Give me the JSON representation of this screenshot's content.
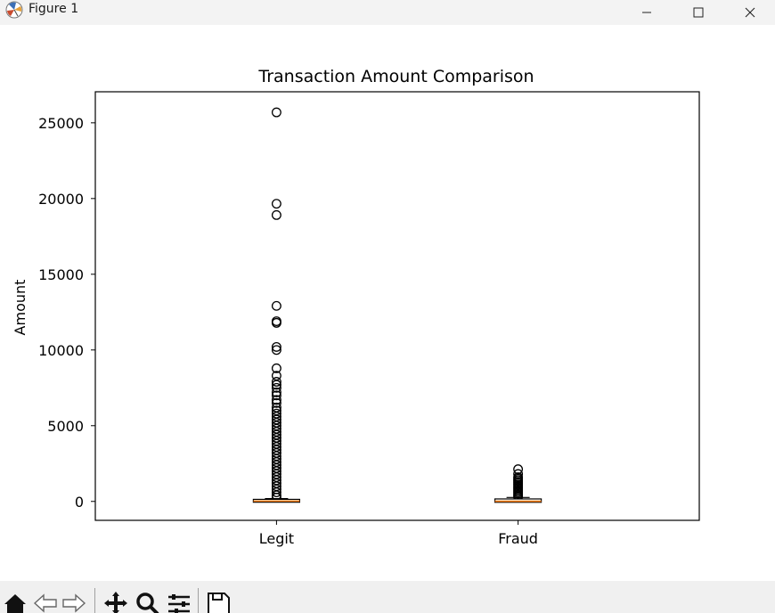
{
  "window": {
    "title": "Figure 1",
    "icon": "matplotlib-icon",
    "controls": [
      "minimize-icon",
      "maximize-icon",
      "close-icon"
    ]
  },
  "toolbar": {
    "buttons": [
      "home-icon",
      "back-icon",
      "forward-icon",
      "pan-icon",
      "zoom-icon",
      "configure-subplots-icon",
      "save-icon"
    ]
  },
  "chart_data": {
    "type": "box",
    "title": "Transaction Amount Comparison",
    "xlabel": "",
    "ylabel": "Amount",
    "categories": [
      "Legit",
      "Fraud"
    ],
    "yticks": [
      0,
      5000,
      10000,
      15000,
      20000,
      25000
    ],
    "ytick_labels": [
      "0",
      "5000",
      "10000",
      "15000",
      "20000",
      "25000"
    ],
    "ylim": [
      -1250,
      27050
    ],
    "grid": false,
    "colors": {
      "box": "#000000",
      "median": "#ff7f0e",
      "flier": "#000000"
    },
    "boxes": [
      {
        "name": "Legit",
        "whisker_low": 0,
        "q1": 5.6,
        "median": 22,
        "q3": 77,
        "whisker_high": 185,
        "fliers": [
          25691,
          19656,
          18910,
          12910,
          11898,
          11790,
          10200,
          10000,
          8790,
          8300,
          7900,
          7700,
          7500,
          7200,
          7000,
          6700,
          6500,
          6200,
          6000,
          5800,
          5600,
          5400,
          5200,
          5000,
          4800,
          4600,
          4400,
          4200,
          4000,
          3800,
          3600,
          3400,
          3200,
          3000,
          2800,
          2600,
          2400,
          2200,
          2000,
          1800,
          1600,
          1400,
          1200,
          1000,
          800,
          600,
          400,
          250
        ]
      },
      {
        "name": "Fraud",
        "whisker_low": 0,
        "q1": 1,
        "median": 9.25,
        "q3": 105,
        "whisker_high": 260,
        "fliers": [
          2125,
          1810,
          1600,
          1500,
          1400,
          1300,
          1200,
          1100,
          1000,
          900,
          800,
          700,
          600,
          500,
          400,
          300
        ]
      }
    ]
  }
}
